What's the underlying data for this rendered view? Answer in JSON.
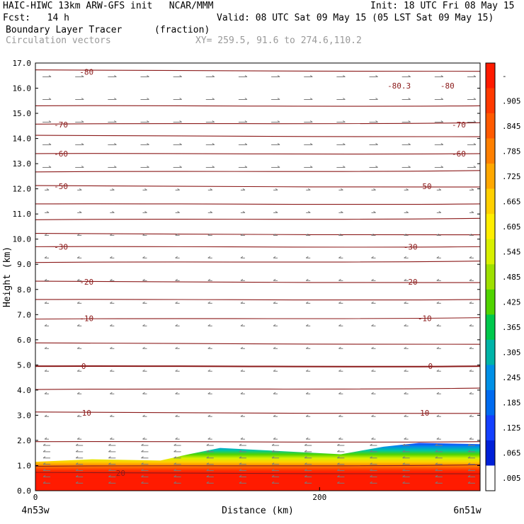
{
  "header": {
    "model_line": "HAIC-HIWC 13km ARW-GFS init   NCAR/MMM",
    "init_line": "Init: 18 UTC Fri 08 May 15",
    "fcst_line": "Fcst:   14 h",
    "valid_line": "Valid: 08 UTC Sat 09 May 15 (05 LST Sat 09 May 15)",
    "field_name": "Boundary Layer Tracer",
    "field_units": "(fraction)",
    "vectors_label": "Circulation vectors",
    "xy_label": "XY= 259.5, 91.6 to 274.6,110.2"
  },
  "chart_data": {
    "type": "heatmap",
    "title": "Boundary Layer Tracer (fraction)",
    "xlabel": "Distance (km)",
    "ylabel": "Height (km)",
    "xlim": [
      0,
      313
    ],
    "ylim": [
      0,
      17
    ],
    "x_ticks": [
      "0",
      "200"
    ],
    "x_tick_values": [
      0,
      200
    ],
    "y_ticks": [
      "0.0",
      "1.0",
      "2.0",
      "3.0",
      "4.0",
      "5.0",
      "6.0",
      "7.0",
      "8.0",
      "9.0",
      "10.0",
      "11.0",
      "12.0",
      "13.0",
      "14.0",
      "15.0",
      "16.0",
      "17.0"
    ],
    "x_end_labels": {
      "left": "4n53w",
      "right": "6n51w"
    },
    "tracer_top_profile_km": {
      "x": [
        0,
        40,
        88,
        108,
        130,
        215,
        245,
        270,
        313
      ],
      "top": [
        1.15,
        1.25,
        1.2,
        1.45,
        1.7,
        1.45,
        1.75,
        1.9,
        1.85
      ]
    },
    "isotherm_labels": [
      {
        "label": "-80",
        "x": 36,
        "y": 16.65
      },
      {
        "label": "-80.3",
        "x": 256,
        "y": 16.1
      },
      {
        "label": "-80",
        "x": 290,
        "y": 16.1
      },
      {
        "label": "-70",
        "x": 18,
        "y": 14.55
      },
      {
        "label": "-70",
        "x": 298,
        "y": 14.55
      },
      {
        "label": "-60",
        "x": 18,
        "y": 13.4
      },
      {
        "label": "-60",
        "x": 298,
        "y": 13.4
      },
      {
        "label": "-50",
        "x": 18,
        "y": 12.1
      },
      {
        "label": "-50",
        "x": 274,
        "y": 12.1
      },
      {
        "label": "-30",
        "x": 18,
        "y": 9.7
      },
      {
        "label": "-30",
        "x": 264,
        "y": 9.7
      },
      {
        "label": "-20",
        "x": 36,
        "y": 8.3
      },
      {
        "label": "-20",
        "x": 264,
        "y": 8.3
      },
      {
        "label": "-10",
        "x": 36,
        "y": 6.85
      },
      {
        "label": "-10",
        "x": 274,
        "y": 6.85
      },
      {
        "label": "0",
        "x": 34,
        "y": 4.95
      },
      {
        "label": "0",
        "x": 278,
        "y": 4.95
      },
      {
        "label": "10",
        "x": 36,
        "y": 3.1
      },
      {
        "label": "10",
        "x": 274,
        "y": 3.1
      },
      {
        "label": "20",
        "x": 60,
        "y": 0.7
      }
    ],
    "isotherm_levels_km": [
      16.7,
      15.3,
      14.6,
      14.1,
      13.4,
      12.7,
      12.1,
      11.4,
      10.8,
      10.2,
      9.7,
      9.1,
      8.3,
      7.6,
      6.85,
      5.85,
      4.95,
      4.05,
      3.1,
      1.95,
      1.0,
      0.7
    ],
    "colorbar": {
      "labels": [
        "-",
        ".905",
        ".845",
        ".785",
        ".725",
        ".665",
        ".605",
        ".545",
        ".485",
        ".425",
        ".365",
        ".305",
        ".245",
        ".185",
        ".125",
        ".065",
        ".005"
      ],
      "colors": [
        "#ff1b00",
        "#ff3a00",
        "#ff5a00",
        "#ff8000",
        "#ffa800",
        "#ffd000",
        "#ffee00",
        "#d8f000",
        "#9ee000",
        "#50d400",
        "#00c84c",
        "#00b4a8",
        "#0090e6",
        "#006bf0",
        "#1440ff",
        "#0020d8",
        "#ffffff"
      ]
    },
    "isotherm_color": "#8b1a1a",
    "vector_color": "#7a7a7a"
  }
}
